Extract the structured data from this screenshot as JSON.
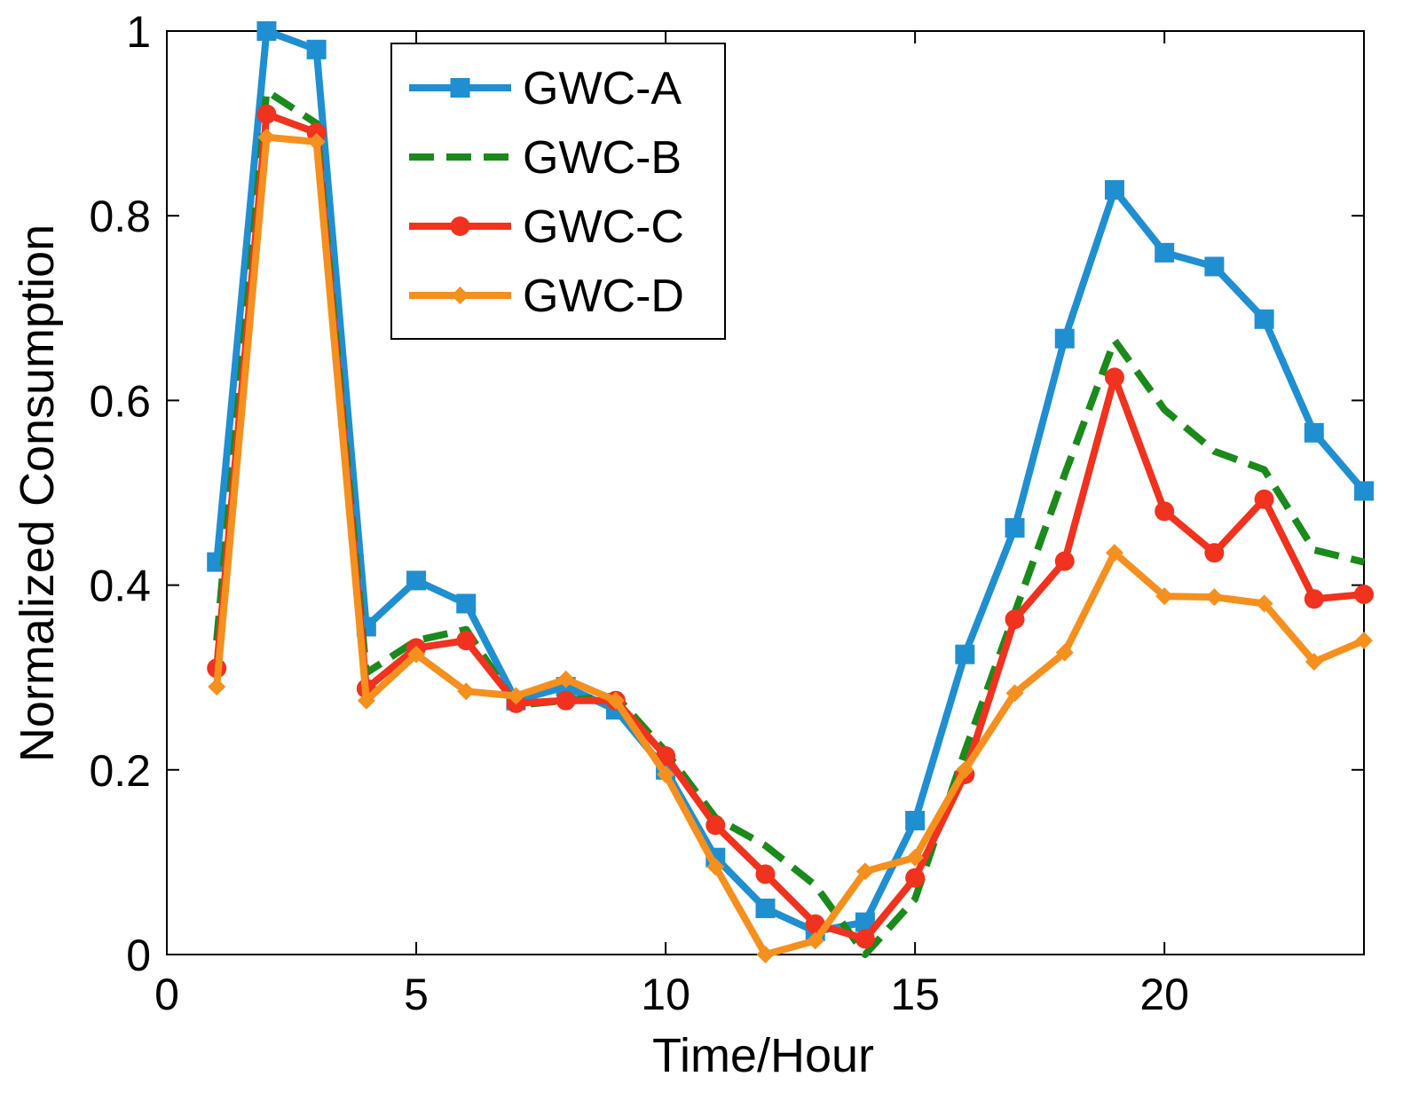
{
  "chart_data": {
    "type": "line",
    "title": "",
    "xlabel": "Time/Hour",
    "ylabel": "Normalized Consumption",
    "xlim": [
      0,
      24
    ],
    "ylim": [
      0,
      1
    ],
    "x_ticks": [
      0,
      5,
      10,
      15,
      20
    ],
    "y_ticks": [
      0,
      0.2,
      0.4,
      0.6,
      0.8,
      1
    ],
    "x_tick_labels": [
      "0",
      "5",
      "10",
      "15",
      "20"
    ],
    "y_tick_labels": [
      "0",
      "0.2",
      "0.4",
      "0.6",
      "0.8",
      "1"
    ],
    "grid": false,
    "legend_position": "top-center",
    "x": [
      1,
      2,
      3,
      4,
      5,
      6,
      7,
      8,
      9,
      10,
      11,
      12,
      13,
      14,
      15,
      16,
      17,
      18,
      19,
      20,
      21,
      22,
      23,
      24
    ],
    "series": [
      {
        "name": "GWC-A",
        "color": "#1f8fd1",
        "line_style": "solid",
        "marker": "square",
        "values": [
          0.425,
          1.0,
          0.98,
          0.355,
          0.405,
          0.38,
          0.275,
          0.29,
          0.265,
          0.2,
          0.105,
          0.05,
          0.025,
          0.035,
          0.145,
          0.325,
          0.462,
          0.667,
          0.828,
          0.76,
          0.745,
          0.688,
          0.565,
          0.502
        ]
      },
      {
        "name": "GWC-B",
        "color": "#1a8a1a",
        "line_style": "dashed",
        "marker": "none",
        "values": [
          0.34,
          0.935,
          0.9,
          0.305,
          0.34,
          0.352,
          0.27,
          0.275,
          0.28,
          0.22,
          0.148,
          0.118,
          0.075,
          0.0,
          0.06,
          0.22,
          0.37,
          0.52,
          0.665,
          0.59,
          0.545,
          0.525,
          0.438,
          0.425
        ]
      },
      {
        "name": "GWC-C",
        "color": "#f0321e",
        "line_style": "solid",
        "marker": "circle",
        "values": [
          0.31,
          0.91,
          0.89,
          0.288,
          0.332,
          0.34,
          0.272,
          0.275,
          0.275,
          0.215,
          0.14,
          0.087,
          0.033,
          0.017,
          0.083,
          0.195,
          0.363,
          0.426,
          0.625,
          0.48,
          0.435,
          0.493,
          0.385,
          0.39
        ]
      },
      {
        "name": "GWC-D",
        "color": "#f5901e",
        "line_style": "solid",
        "marker": "diamond",
        "values": [
          0.29,
          0.885,
          0.88,
          0.275,
          0.325,
          0.285,
          0.28,
          0.298,
          0.275,
          0.195,
          0.095,
          0.0,
          0.015,
          0.09,
          0.105,
          0.2,
          0.283,
          0.327,
          0.435,
          0.388,
          0.387,
          0.38,
          0.317,
          0.34
        ]
      }
    ]
  }
}
